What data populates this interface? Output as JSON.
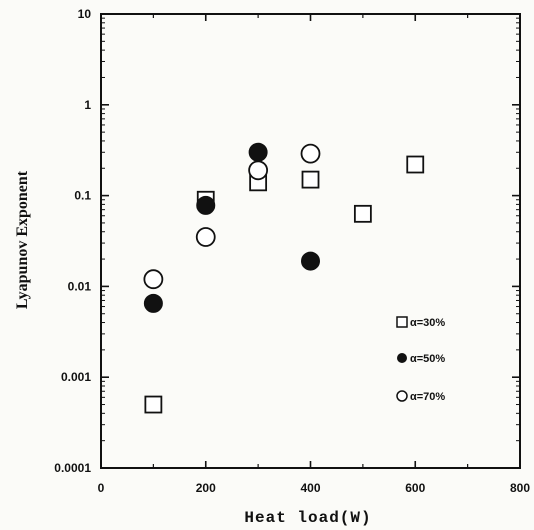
{
  "chart_data": {
    "type": "scatter",
    "title": "",
    "xlabel": "Heat load(W)",
    "ylabel": "Lyapunov Exponent",
    "xlim": [
      0,
      800
    ],
    "ylim": [
      0.0001,
      10
    ],
    "y_scale": "log",
    "x_ticks": [
      "0",
      "200",
      "400",
      "600",
      "800"
    ],
    "y_ticks": [
      "0.0001",
      "0.001",
      "0.01",
      "0.1",
      "1",
      "10"
    ],
    "grid": false,
    "legend_position": "bottom-right",
    "series": [
      {
        "name": "α=30%",
        "marker": "open-square",
        "points": [
          {
            "x": 100,
            "y": 0.0005
          },
          {
            "x": 200,
            "y": 0.09
          },
          {
            "x": 300,
            "y": 0.14
          },
          {
            "x": 400,
            "y": 0.15
          },
          {
            "x": 500,
            "y": 0.063
          },
          {
            "x": 600,
            "y": 0.22
          }
        ]
      },
      {
        "name": "α=50%",
        "marker": "filled-circle",
        "points": [
          {
            "x": 100,
            "y": 0.0065
          },
          {
            "x": 200,
            "y": 0.078
          },
          {
            "x": 300,
            "y": 0.3
          },
          {
            "x": 400,
            "y": 0.019
          }
        ]
      },
      {
        "name": "α=70%",
        "marker": "open-circle",
        "points": [
          {
            "x": 100,
            "y": 0.012
          },
          {
            "x": 200,
            "y": 0.035
          },
          {
            "x": 300,
            "y": 0.19
          },
          {
            "x": 400,
            "y": 0.29
          }
        ]
      }
    ]
  }
}
